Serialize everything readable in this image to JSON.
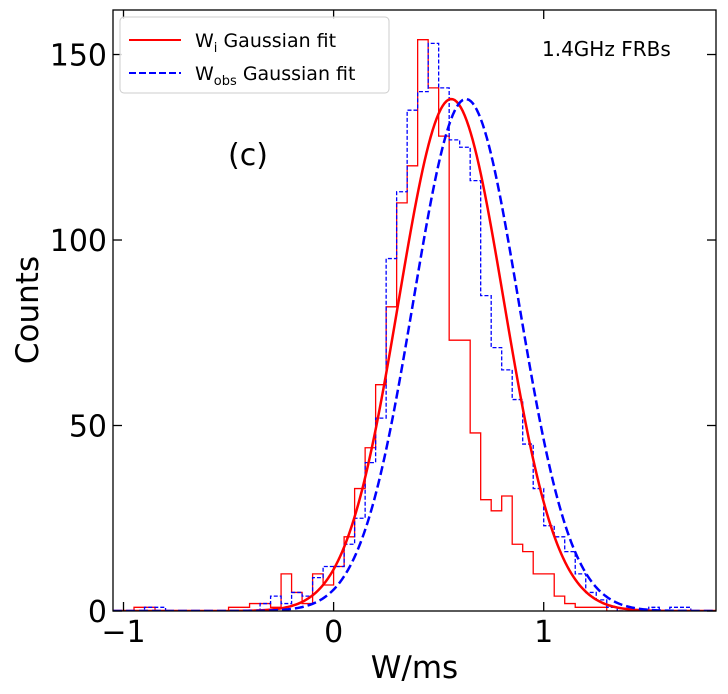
{
  "chart_data": {
    "type": "histogram",
    "xlabel": "W/ms",
    "ylabel": "Counts",
    "xlim": [
      -1.05,
      1.82
    ],
    "ylim": [
      0,
      162
    ],
    "xticks": [
      -1,
      0,
      1
    ],
    "xtick_labels": [
      "−1",
      "0",
      "1"
    ],
    "yticks": [
      0,
      50,
      100,
      150
    ],
    "ytick_labels": [
      "0",
      "50",
      "100",
      "150"
    ],
    "bin_width": 0.05,
    "annotations": {
      "panel_label": "(c)",
      "band_label": "1.4GHz FRBs"
    },
    "legend": {
      "placement": "top-left",
      "entries": [
        {
          "main": "W",
          "sub": "i",
          "rest": " Gaussian fit",
          "color": "#ff0000",
          "style": "solid"
        },
        {
          "main": "W",
          "sub": "obs",
          "rest": " Gaussian fit",
          "color": "#0000ff",
          "style": "dashed"
        }
      ]
    },
    "series": [
      {
        "name": "W_i histogram",
        "color": "#ff0000",
        "style": "solid",
        "bin_edges": [
          -0.95,
          -0.9,
          -0.85,
          -0.8,
          -0.75,
          -0.7,
          -0.65,
          -0.6,
          -0.55,
          -0.5,
          -0.45,
          -0.4,
          -0.35,
          -0.3,
          -0.25,
          -0.2,
          -0.15,
          -0.1,
          -0.05,
          0.0,
          0.05,
          0.1,
          0.15,
          0.2,
          0.25,
          0.3,
          0.35,
          0.4,
          0.45,
          0.5,
          0.55,
          0.6,
          0.65,
          0.7,
          0.75,
          0.8,
          0.85,
          0.9,
          0.95,
          1.0,
          1.05,
          1.1,
          1.15,
          1.2,
          1.25,
          1.3,
          1.35,
          1.4,
          1.45,
          1.5
        ],
        "counts": [
          1,
          1,
          0,
          0,
          0,
          0,
          0,
          0,
          0,
          1,
          1,
          2,
          2,
          1,
          10,
          5,
          2,
          10,
          7,
          12,
          20,
          33,
          44,
          61,
          82,
          110,
          120,
          154,
          141,
          128,
          73,
          73,
          48,
          30,
          27,
          31,
          18,
          16,
          10,
          10,
          4,
          2,
          1,
          1,
          1,
          0,
          0,
          0,
          0
        ]
      },
      {
        "name": "W_obs histogram",
        "color": "#0000ff",
        "style": "dashed",
        "bin_edges": [
          -0.95,
          -0.9,
          -0.85,
          -0.8,
          -0.75,
          -0.7,
          -0.65,
          -0.6,
          -0.55,
          -0.5,
          -0.45,
          -0.4,
          -0.35,
          -0.3,
          -0.25,
          -0.2,
          -0.15,
          -0.1,
          -0.05,
          0.0,
          0.05,
          0.1,
          0.15,
          0.2,
          0.25,
          0.3,
          0.35,
          0.4,
          0.45,
          0.5,
          0.55,
          0.6,
          0.65,
          0.7,
          0.75,
          0.8,
          0.85,
          0.9,
          0.95,
          1.0,
          1.05,
          1.1,
          1.15,
          1.2,
          1.25,
          1.3,
          1.35,
          1.4,
          1.45,
          1.5,
          1.55,
          1.6,
          1.65,
          1.7
        ],
        "counts": [
          0,
          1,
          1,
          0,
          0,
          0,
          0,
          0,
          0,
          0,
          0,
          0,
          2,
          4,
          2,
          5,
          4,
          9,
          12,
          12,
          18,
          25,
          40,
          52,
          95,
          113,
          135,
          140,
          153,
          141,
          127,
          125,
          116,
          85,
          71,
          65,
          57,
          45,
          33,
          23,
          20,
          16,
          10,
          5,
          3,
          1,
          0,
          0,
          0,
          1,
          0,
          1,
          1
        ]
      },
      {
        "name": "W_i Gaussian fit",
        "color": "#ff0000",
        "style": "solid",
        "fit": {
          "amplitude": 138,
          "mean": 0.56,
          "sigma": 0.25
        }
      },
      {
        "name": "W_obs Gaussian fit",
        "color": "#0000ff",
        "style": "dashed",
        "fit": {
          "amplitude": 138,
          "mean": 0.63,
          "sigma": 0.25
        }
      }
    ]
  }
}
